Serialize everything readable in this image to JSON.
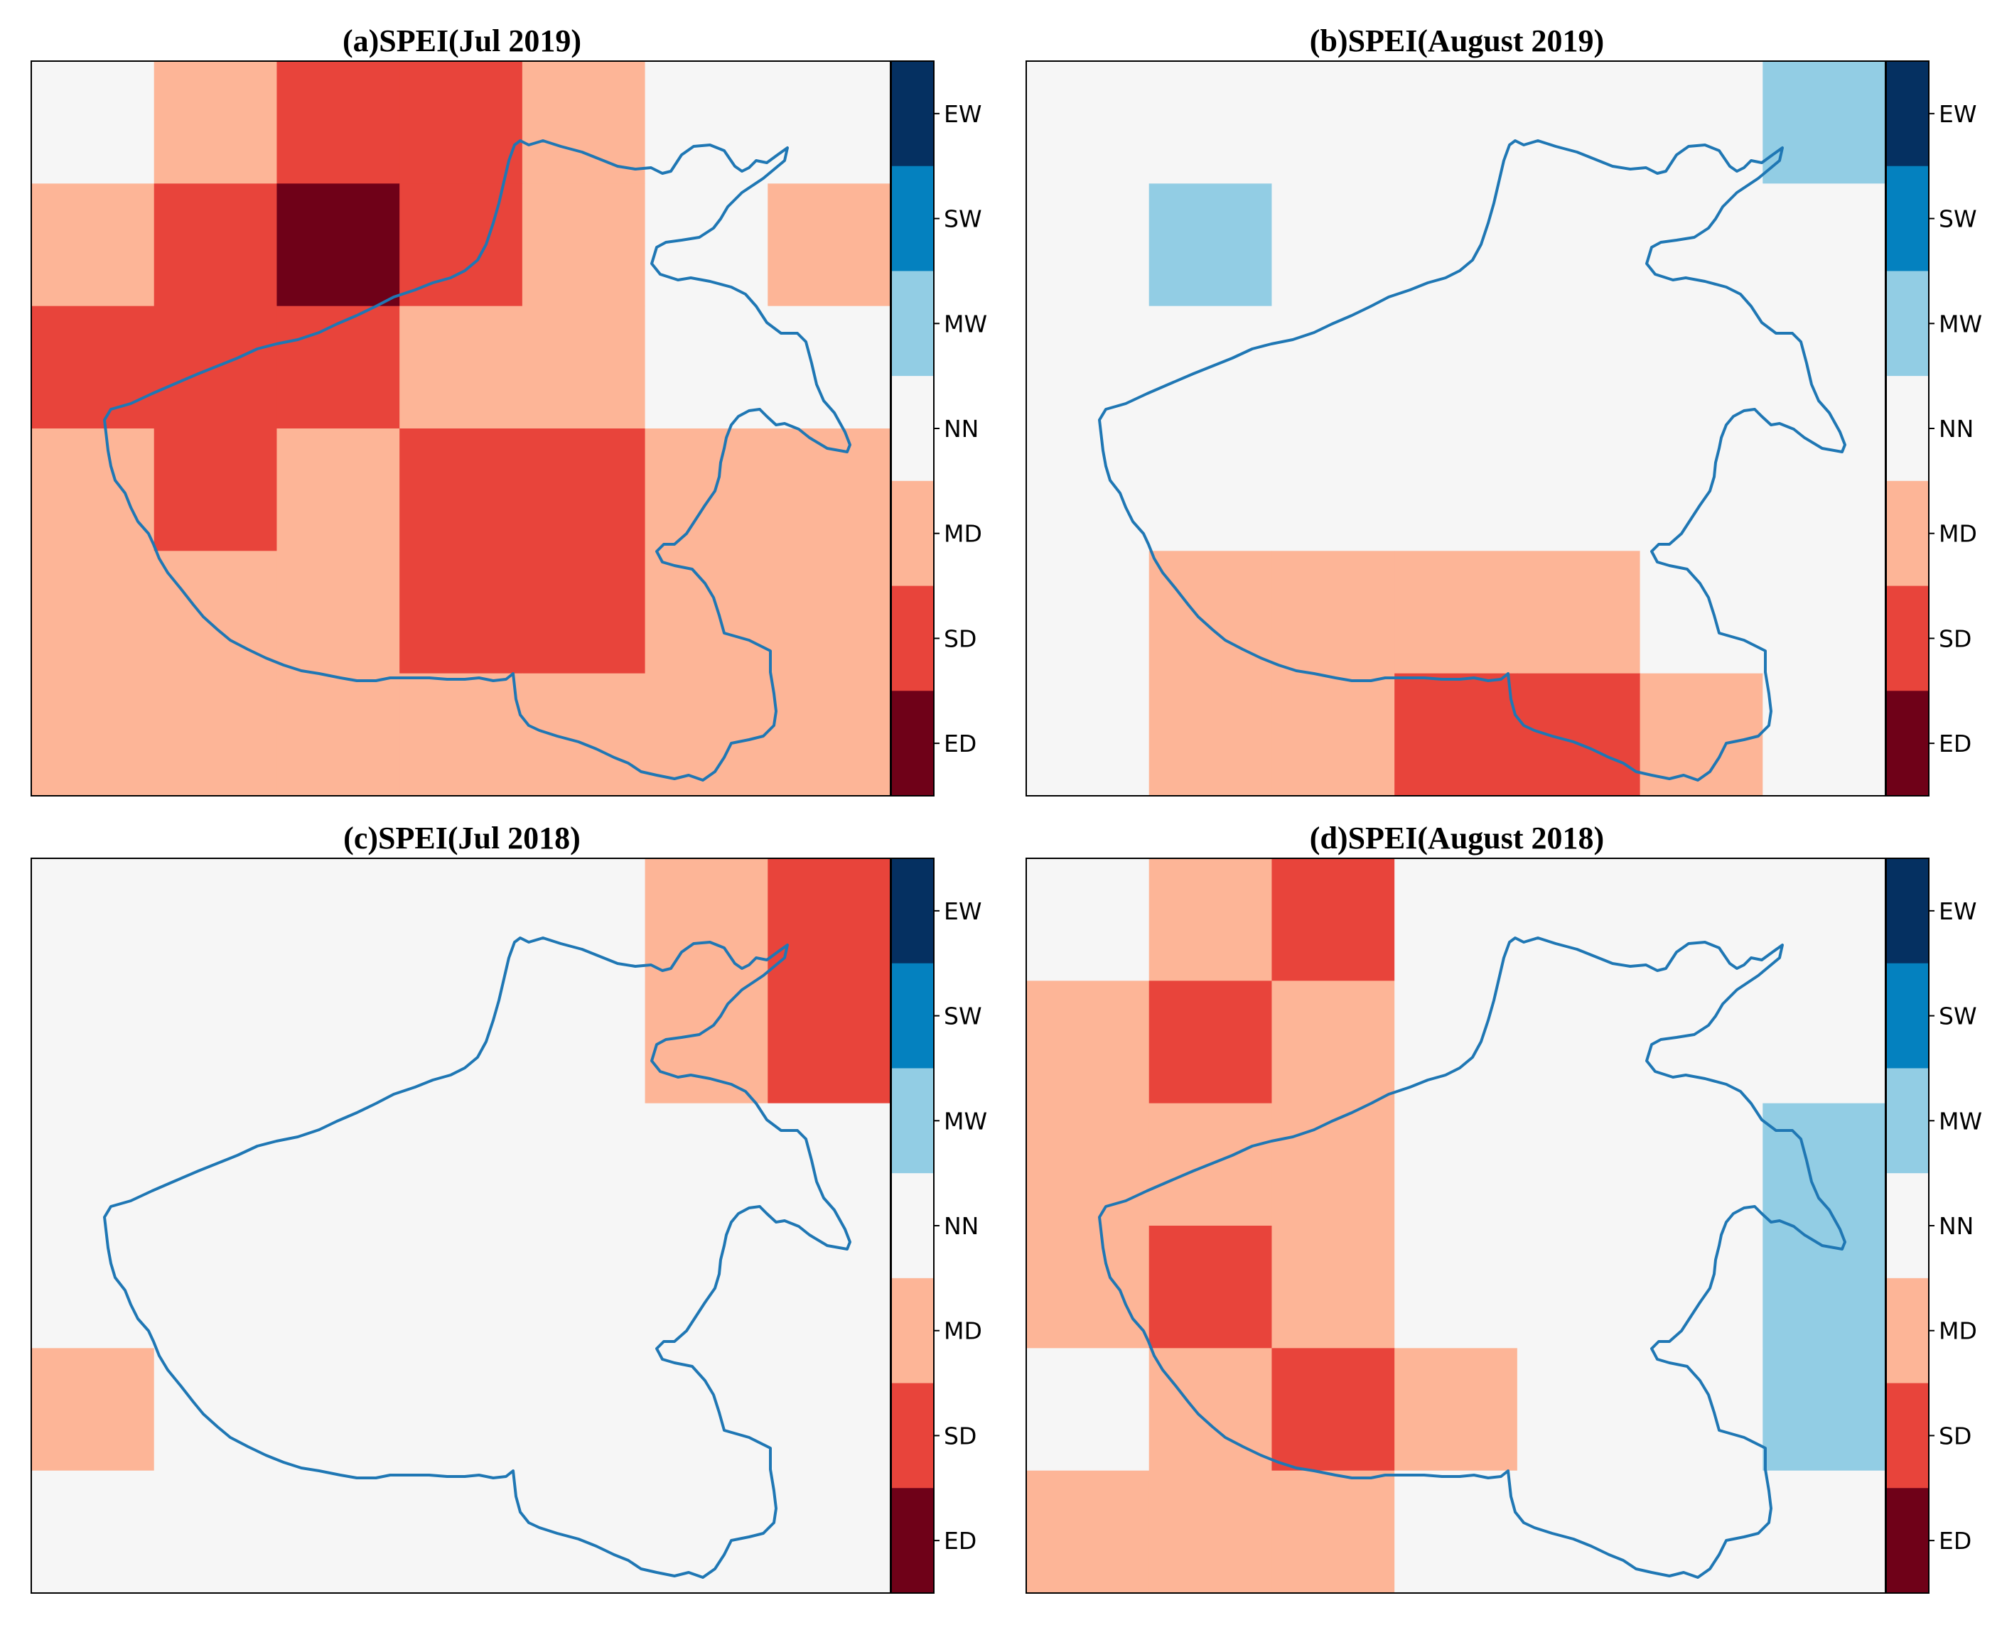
{
  "legend": {
    "categories": [
      {
        "code": "EW",
        "color": "#053061"
      },
      {
        "code": "SW",
        "color": "#0481bf"
      },
      {
        "code": "MW",
        "color": "#92cde4"
      },
      {
        "code": "NN",
        "color": "#f6f6f6"
      },
      {
        "code": "MD",
        "color": "#fdb597"
      },
      {
        "code": "SD",
        "color": "#e8443b"
      },
      {
        "code": "ED",
        "color": "#6f0118"
      }
    ]
  },
  "boundary_color": "#1f77b4",
  "chart_data": [
    {
      "type": "heatmap",
      "title": "(a)SPEI(Jul 2019)",
      "rows": 6,
      "cols": 7,
      "grid": [
        [
          "NN",
          "MD",
          "SD",
          "SD",
          "MD",
          "NN",
          "NN"
        ],
        [
          "MD",
          "SD",
          "ED",
          "SD",
          "MD",
          "NN",
          "MD"
        ],
        [
          "SD",
          "SD",
          "SD",
          "MD",
          "MD",
          "NN",
          "NN"
        ],
        [
          "MD",
          "SD",
          "MD",
          "SD",
          "SD",
          "MD",
          "MD"
        ],
        [
          "MD",
          "MD",
          "MD",
          "SD",
          "SD",
          "MD",
          "MD"
        ],
        [
          "MD",
          "MD",
          "MD",
          "MD",
          "MD",
          "MD",
          "MD"
        ]
      ]
    },
    {
      "type": "heatmap",
      "title": "(b)SPEI(August 2019)",
      "rows": 6,
      "cols": 7,
      "grid": [
        [
          "NN",
          "NN",
          "NN",
          "NN",
          "NN",
          "NN",
          "MW"
        ],
        [
          "NN",
          "MW",
          "NN",
          "NN",
          "NN",
          "NN",
          "NN"
        ],
        [
          "NN",
          "NN",
          "NN",
          "NN",
          "NN",
          "NN",
          "NN"
        ],
        [
          "NN",
          "NN",
          "NN",
          "NN",
          "NN",
          "NN",
          "NN"
        ],
        [
          "NN",
          "MD",
          "MD",
          "MD",
          "MD",
          "NN",
          "NN"
        ],
        [
          "NN",
          "MD",
          "MD",
          "SD",
          "SD",
          "MD",
          "NN"
        ]
      ]
    },
    {
      "type": "heatmap",
      "title": "(c)SPEI(Jul 2018)",
      "rows": 6,
      "cols": 7,
      "grid": [
        [
          "NN",
          "NN",
          "NN",
          "NN",
          "NN",
          "MD",
          "SD"
        ],
        [
          "NN",
          "NN",
          "NN",
          "NN",
          "NN",
          "MD",
          "SD"
        ],
        [
          "NN",
          "NN",
          "NN",
          "NN",
          "NN",
          "NN",
          "NN"
        ],
        [
          "NN",
          "NN",
          "NN",
          "NN",
          "NN",
          "NN",
          "NN"
        ],
        [
          "MD",
          "NN",
          "NN",
          "NN",
          "NN",
          "NN",
          "NN"
        ],
        [
          "NN",
          "NN",
          "NN",
          "NN",
          "NN",
          "NN",
          "NN"
        ]
      ]
    },
    {
      "type": "heatmap",
      "title": "(d)SPEI(August 2018)",
      "rows": 6,
      "cols": 7,
      "grid": [
        [
          "NN",
          "MD",
          "SD",
          "NN",
          "NN",
          "NN",
          "NN"
        ],
        [
          "MD",
          "SD",
          "MD",
          "NN",
          "NN",
          "NN",
          "NN"
        ],
        [
          "MD",
          "MD",
          "MD",
          "NN",
          "NN",
          "NN",
          "MW"
        ],
        [
          "MD",
          "SD",
          "MD",
          "NN",
          "NN",
          "NN",
          "MW"
        ],
        [
          "NN",
          "MD",
          "SD",
          "MD",
          "NN",
          "NN",
          "MW"
        ],
        [
          "MD",
          "MD",
          "MD",
          "NN",
          "NN",
          "NN",
          "NN"
        ]
      ]
    }
  ]
}
